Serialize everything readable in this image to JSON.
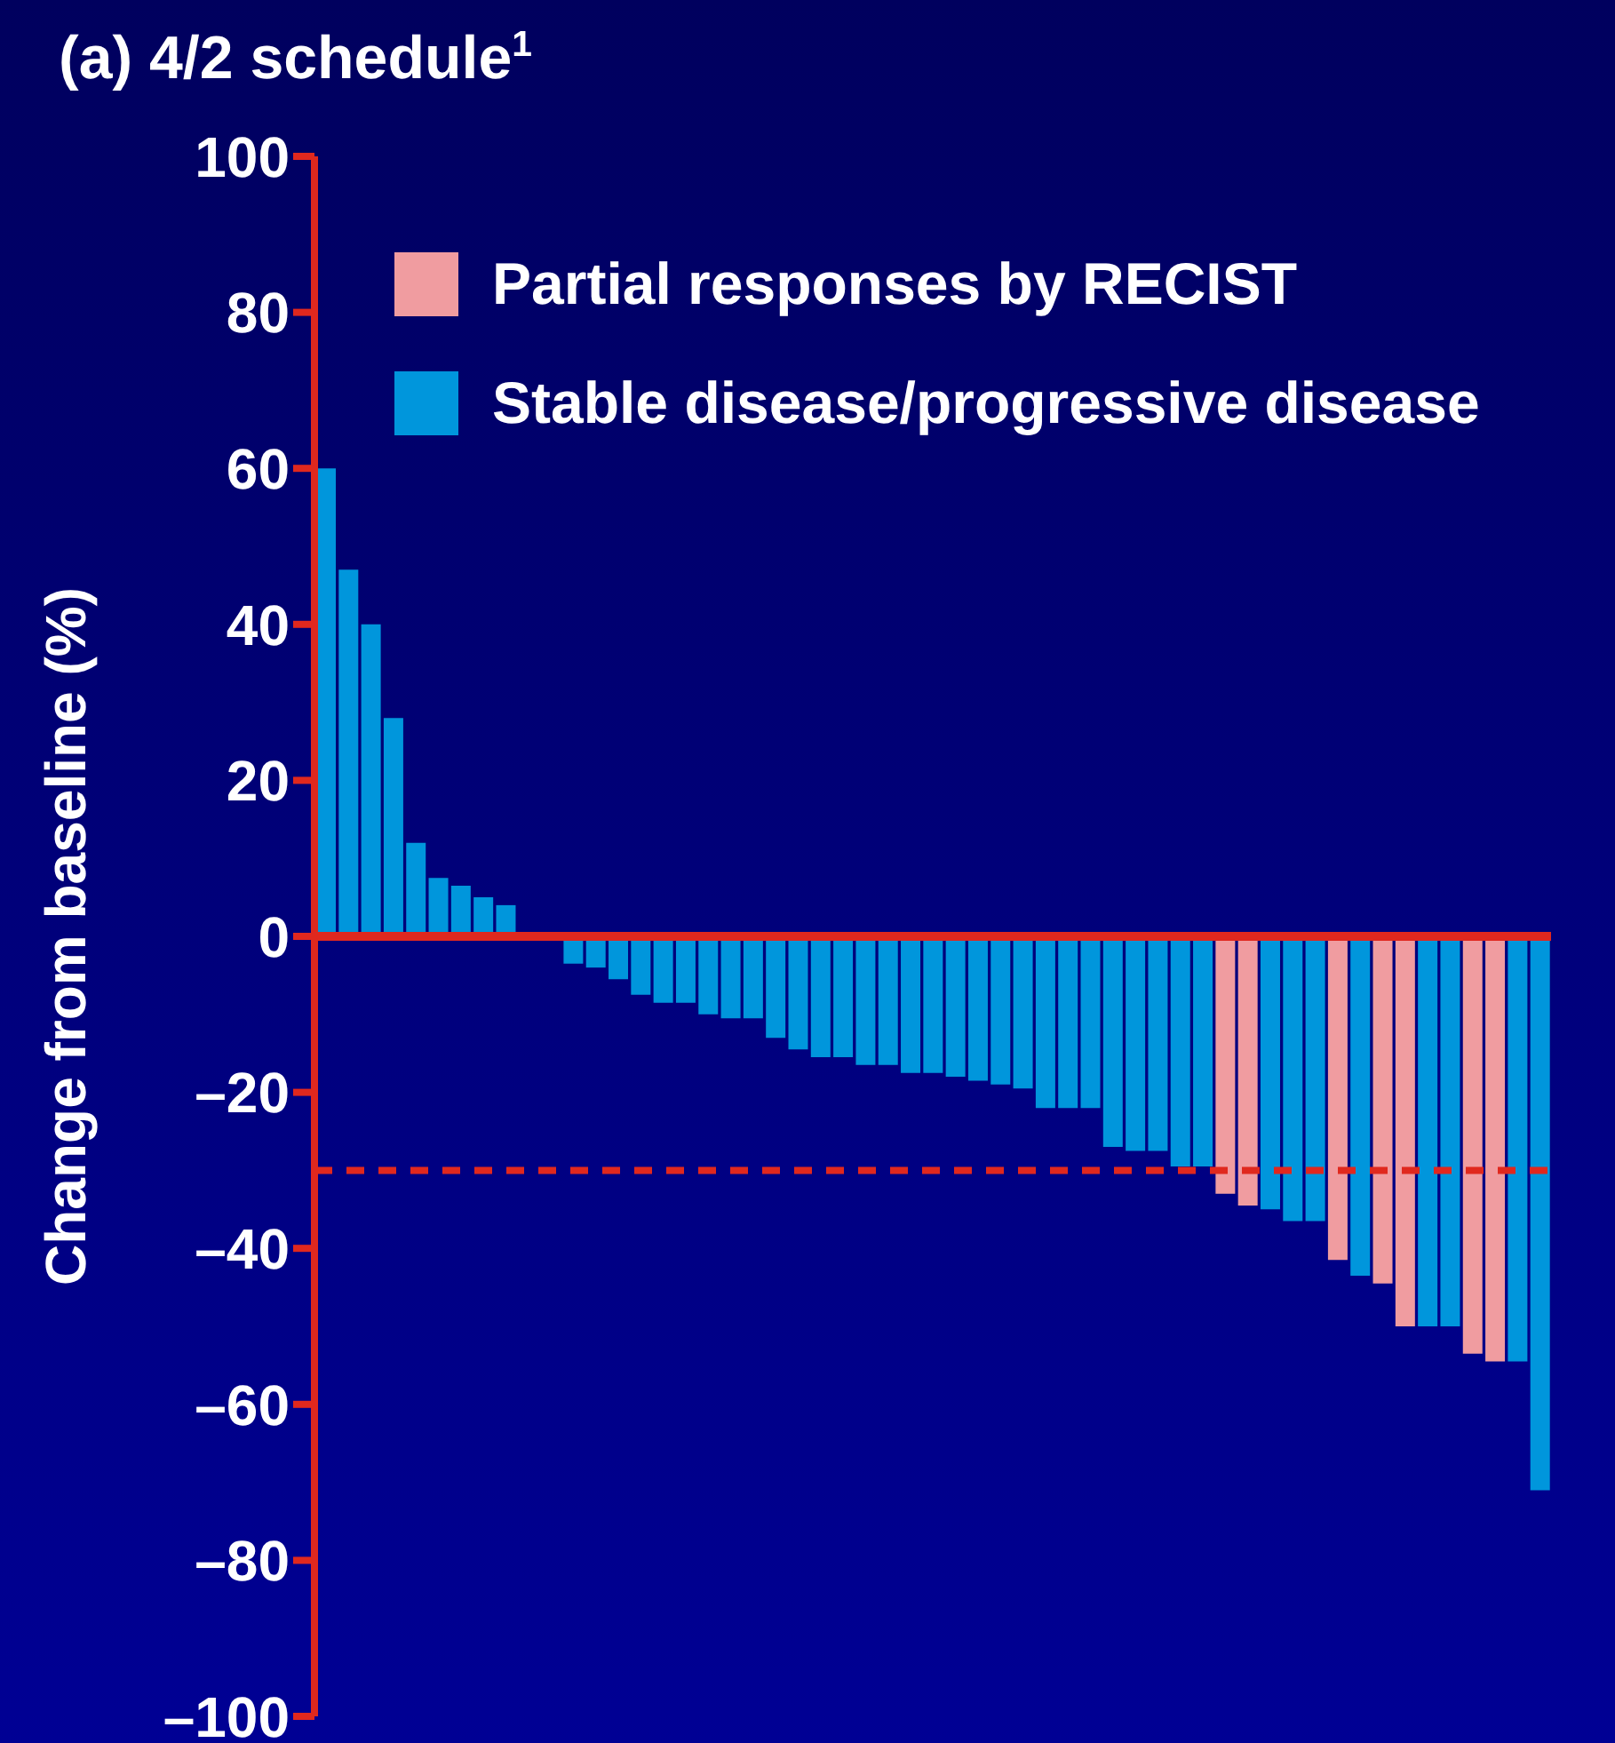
{
  "chart_data": {
    "type": "bar",
    "title": "(a) 4/2 schedule$^{1}$",
    "ylabel": "Change from baseline (%)",
    "categories": [
      null,
      null,
      null,
      null,
      null,
      null,
      null,
      null,
      null,
      null,
      null,
      null,
      null,
      null,
      null,
      null,
      null,
      null,
      null,
      null,
      null,
      null,
      null,
      null,
      null,
      null,
      null,
      null,
      null,
      null,
      null,
      null,
      null,
      null,
      null,
      null,
      null,
      null,
      null,
      null,
      null,
      null,
      null,
      null,
      null,
      null,
      null,
      null,
      null,
      null,
      null,
      null,
      null,
      null,
      null
    ],
    "series": [
      {
        "name": "Partial responses by RECIST",
        "color": "#f09ca0",
        "values": [
          null,
          null,
          null,
          null,
          null,
          null,
          null,
          null,
          null,
          null,
          null,
          null,
          null,
          null,
          null,
          null,
          null,
          null,
          null,
          null,
          null,
          null,
          null,
          null,
          null,
          null,
          null,
          null,
          null,
          null,
          null,
          null,
          null,
          null,
          null,
          null,
          null,
          null,
          null,
          null,
          -33,
          -34.5,
          null,
          null,
          null,
          -41.5,
          null,
          -44.5,
          -50,
          null,
          null,
          -53.5,
          -54.5,
          null,
          null
        ]
      },
      {
        "name": "Stable disease/progressive disease",
        "color": "#0096dc",
        "values": [
          60,
          47,
          40,
          28,
          12,
          7.5,
          6.5,
          5,
          4,
          0,
          0,
          -3.5,
          -4,
          -5.5,
          -7.5,
          -8.5,
          -8.5,
          -10,
          -10.5,
          -10.5,
          -13,
          -14.5,
          -15.5,
          -15.5,
          -16.5,
          -16.5,
          -17.5,
          -17.5,
          -18,
          -18.5,
          -19,
          -19.5,
          -22,
          -22,
          -22,
          -27,
          -27.5,
          -27.5,
          -29.5,
          -29.5,
          null,
          null,
          -35,
          -36.5,
          -36.5,
          null,
          -43.5,
          null,
          null,
          -50,
          -50,
          null,
          null,
          -54.5,
          -71
        ]
      }
    ],
    "ylim": [
      -100,
      100
    ],
    "yticks": [
      {
        "value": -100,
        "label": "–100"
      },
      {
        "value": -80,
        "label": "–80"
      },
      {
        "value": -60,
        "label": "–60"
      },
      {
        "value": -40,
        "label": "–40"
      },
      {
        "value": -20,
        "label": "–20"
      },
      0,
      20,
      40,
      60,
      80,
      100
    ],
    "ref_lines": [
      {
        "axis": "y",
        "value": 0,
        "color": "#e0281e",
        "line_style": "solid"
      },
      {
        "axis": "y",
        "value": -30,
        "color": "#e0281e",
        "line_style": "dashed"
      }
    ],
    "grid": false,
    "legend": "top right"
  }
}
